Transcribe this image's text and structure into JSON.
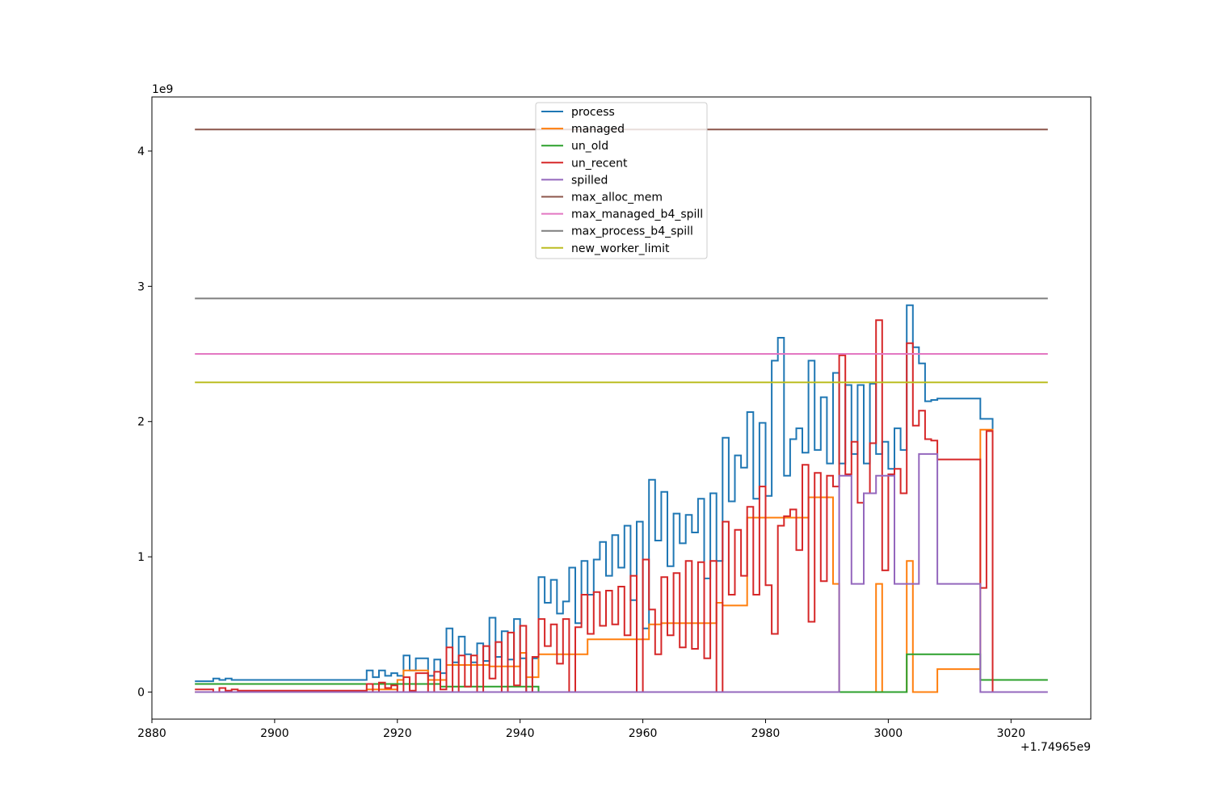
{
  "chart_data": {
    "type": "line",
    "title": "",
    "xlabel": "",
    "ylabel": "",
    "x_offset_label": "+1.74965e9",
    "y_scale_label": "1e9",
    "xlim": [
      2880,
      3033
    ],
    "ylim": [
      -0.2,
      4.4
    ],
    "x_ticks": [
      2880,
      2900,
      2920,
      2940,
      2960,
      2980,
      3000,
      3020
    ],
    "x_tick_labels": [
      "2880",
      "2900",
      "2920",
      "2940",
      "2960",
      "2980",
      "3000",
      "3020"
    ],
    "y_ticks": [
      0,
      1,
      2,
      3,
      4
    ],
    "y_tick_labels": [
      "0",
      "1",
      "2",
      "3",
      "4"
    ],
    "grid": false,
    "legend_position": "upper-center",
    "step": true,
    "series": [
      {
        "name": "process",
        "color": "#1f77b4",
        "x": [
          2887,
          2890,
          2891,
          2892,
          2893,
          2894,
          2915,
          2916,
          2917,
          2918,
          2919,
          2920,
          2921,
          2922,
          2923,
          2925,
          2926,
          2927,
          2928,
          2929,
          2930,
          2931,
          2932,
          2933,
          2934,
          2935,
          2936,
          2937,
          2938,
          2939,
          2940,
          2941,
          2942,
          2943,
          2944,
          2945,
          2946,
          2947,
          2948,
          2949,
          2950,
          2951,
          2952,
          2953,
          2954,
          2955,
          2956,
          2957,
          2958,
          2959,
          2960,
          2961,
          2962,
          2963,
          2964,
          2965,
          2966,
          2967,
          2968,
          2969,
          2970,
          2971,
          2972,
          2973,
          2974,
          2975,
          2976,
          2977,
          2978,
          2979,
          2980,
          2981,
          2982,
          2983,
          2984,
          2985,
          2986,
          2987,
          2988,
          2989,
          2990,
          2991,
          2992,
          2993,
          2994,
          2995,
          2996,
          2997,
          2998,
          2999,
          3000,
          3001,
          3002,
          3003,
          3004,
          3005,
          3006,
          3007,
          3008,
          3015,
          3016,
          3017
        ],
        "y": [
          0.08,
          0.1,
          0.09,
          0.1,
          0.09,
          0.09,
          0.16,
          0.11,
          0.16,
          0.12,
          0.14,
          0.12,
          0.27,
          0.16,
          0.25,
          0.12,
          0.24,
          0.14,
          0.47,
          0.22,
          0.41,
          0.28,
          0.22,
          0.36,
          0.23,
          0.55,
          0.26,
          0.45,
          0.24,
          0.54,
          0.25,
          0.0,
          0.25,
          0.85,
          0.66,
          0.83,
          0.58,
          0.67,
          0.92,
          0.51,
          0.97,
          0.72,
          0.98,
          1.11,
          0.86,
          1.16,
          0.92,
          1.23,
          0.68,
          1.26,
          0.47,
          1.57,
          1.12,
          1.48,
          0.93,
          1.32,
          1.1,
          1.31,
          1.18,
          1.43,
          0.84,
          1.47,
          0.97,
          1.88,
          1.41,
          1.75,
          1.66,
          2.07,
          1.43,
          1.99,
          1.45,
          2.45,
          2.62,
          1.6,
          1.87,
          1.95,
          1.77,
          2.45,
          1.79,
          2.18,
          1.69,
          2.36,
          1.69,
          2.27,
          1.76,
          2.27,
          1.69,
          2.28,
          1.76,
          1.85,
          1.65,
          1.95,
          1.79,
          2.86,
          2.55,
          2.43,
          2.15,
          2.16,
          2.17,
          2.02,
          2.02,
          0.0
        ]
      },
      {
        "name": "managed",
        "color": "#ff7f0e",
        "x": [
          2887,
          2915,
          2920,
          2921,
          2925,
          2928,
          2935,
          2940,
          2941,
          2943,
          2951,
          2961,
          2963,
          2972,
          2973,
          2977,
          2987,
          2991,
          2992,
          2998,
          2999,
          3003,
          3004,
          3008,
          3015,
          3016,
          3017
        ],
        "y": [
          0.0,
          0.02,
          0.09,
          0.16,
          0.09,
          0.2,
          0.19,
          0.29,
          0.11,
          0.28,
          0.39,
          0.5,
          0.51,
          0.66,
          0.64,
          1.29,
          1.44,
          0.8,
          0.0,
          0.8,
          0.0,
          0.97,
          0.0,
          0.17,
          1.94,
          1.94,
          0.0
        ]
      },
      {
        "name": "un_old",
        "color": "#2ca02c",
        "x": [
          2887,
          2920,
          2927,
          2942,
          2943,
          2991,
          3003,
          3015,
          3016,
          3026
        ],
        "y": [
          0.06,
          0.06,
          0.04,
          0.04,
          0.0,
          0.0,
          0.28,
          0.09,
          0.09,
          0.09
        ]
      },
      {
        "name": "un_recent",
        "color": "#d62728",
        "x": [
          2887,
          2890,
          2891,
          2892,
          2893,
          2894,
          2915,
          2916,
          2917,
          2918,
          2919,
          2920,
          2921,
          2922,
          2923,
          2925,
          2926,
          2927,
          2928,
          2929,
          2930,
          2931,
          2932,
          2933,
          2934,
          2935,
          2936,
          2937,
          2938,
          2939,
          2940,
          2941,
          2942,
          2943,
          2944,
          2945,
          2946,
          2947,
          2948,
          2949,
          2950,
          2951,
          2952,
          2953,
          2954,
          2955,
          2956,
          2957,
          2958,
          2959,
          2960,
          2961,
          2962,
          2963,
          2964,
          2965,
          2966,
          2967,
          2968,
          2969,
          2970,
          2971,
          2972,
          2973,
          2974,
          2975,
          2976,
          2977,
          2978,
          2979,
          2980,
          2981,
          2982,
          2983,
          2984,
          2985,
          2986,
          2987,
          2988,
          2989,
          2990,
          2991,
          2992,
          2993,
          2994,
          2995,
          2996,
          2997,
          2998,
          2999,
          3000,
          3001,
          3002,
          3003,
          3004,
          3005,
          3006,
          3007,
          3008,
          3015,
          3016,
          3017
        ],
        "y": [
          0.02,
          0.0,
          0.03,
          0.01,
          0.02,
          0.01,
          0.06,
          0.0,
          0.07,
          0.03,
          0.05,
          0.0,
          0.11,
          0.01,
          0.14,
          0.0,
          0.15,
          0.02,
          0.33,
          0.0,
          0.27,
          0.04,
          0.27,
          0.0,
          0.34,
          0.1,
          0.37,
          0.0,
          0.44,
          0.05,
          0.49,
          0.0,
          0.26,
          0.54,
          0.34,
          0.5,
          0.21,
          0.54,
          0.0,
          0.48,
          0.72,
          0.43,
          0.74,
          0.49,
          0.75,
          0.5,
          0.78,
          0.42,
          0.86,
          0.0,
          0.98,
          0.61,
          0.28,
          0.85,
          0.42,
          0.88,
          0.33,
          0.97,
          0.32,
          0.96,
          0.25,
          0.97,
          0.0,
          1.26,
          0.72,
          1.2,
          0.86,
          1.37,
          0.72,
          1.52,
          0.79,
          0.43,
          1.23,
          1.3,
          1.35,
          1.05,
          1.68,
          0.52,
          1.62,
          0.82,
          1.6,
          1.52,
          2.49,
          1.61,
          1.85,
          1.4,
          1.47,
          1.84,
          2.75,
          0.9,
          1.61,
          1.65,
          1.47,
          2.58,
          1.97,
          2.08,
          1.87,
          1.86,
          1.72,
          0.77,
          1.93,
          0.0
        ]
      },
      {
        "name": "spilled",
        "color": "#9467bd",
        "x": [
          2887,
          2991,
          2992,
          2994,
          2996,
          2998,
          3001,
          3002,
          3005,
          3008,
          3015,
          3026
        ],
        "y": [
          0.0,
          0.0,
          1.6,
          0.8,
          1.47,
          1.6,
          0.8,
          0.8,
          1.76,
          0.8,
          0.0,
          0.0
        ]
      },
      {
        "name": "max_alloc_mem",
        "color": "#8c564b",
        "x": [
          2887,
          3026
        ],
        "y": [
          4.16,
          4.16
        ]
      },
      {
        "name": "max_managed_b4_spill",
        "color": "#e377c2",
        "x": [
          2887,
          3026
        ],
        "y": [
          2.5,
          2.5
        ]
      },
      {
        "name": "max_process_b4_spill",
        "color": "#7f7f7f",
        "x": [
          2887,
          3026
        ],
        "y": [
          2.91,
          2.91
        ]
      },
      {
        "name": "new_worker_limit",
        "color": "#bcbd22",
        "x": [
          2887,
          3026
        ],
        "y": [
          2.29,
          2.29
        ]
      }
    ]
  }
}
